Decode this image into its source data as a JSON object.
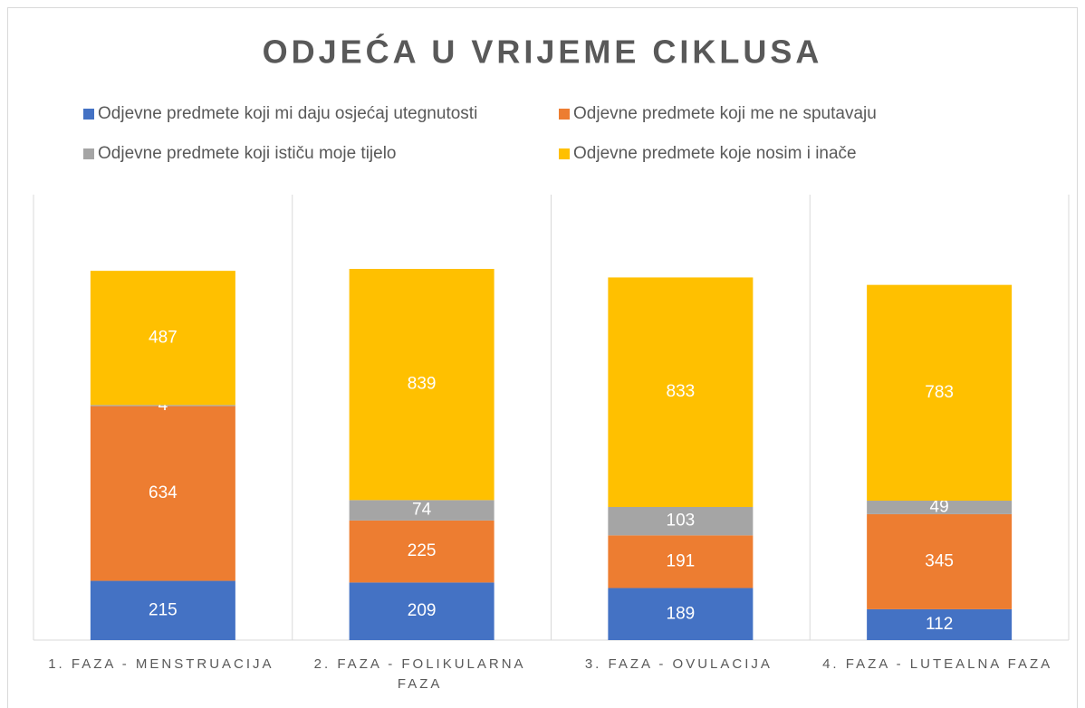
{
  "chart_data": {
    "type": "stacked-bar",
    "title": "ODJEĆA U VRIJEME CIKLUSA",
    "categories": [
      "1. FAZA - MENSTRUACIJA",
      "2. FAZA - FOLIKULARNA FAZA",
      "3. FAZA - OVULACIJA",
      "4. FAZA - LUTEALNA FAZA"
    ],
    "series": [
      {
        "name": "Odjevne predmete koji mi daju osjećaj utegnutosti",
        "color": "#4472c4",
        "values": [
          215,
          209,
          189,
          112
        ]
      },
      {
        "name": "Odjevne predmete koji me ne sputavaju",
        "color": "#ed7d31",
        "values": [
          634,
          225,
          191,
          345
        ]
      },
      {
        "name": "Odjevne predmete koji ističu moje tijelo",
        "color": "#a5a5a5",
        "values": [
          4,
          74,
          103,
          49
        ]
      },
      {
        "name": "Odjevne predmete koje nosim i inače",
        "color": "#ffc000",
        "values": [
          487,
          839,
          833,
          783
        ]
      }
    ],
    "legend": "top"
  }
}
